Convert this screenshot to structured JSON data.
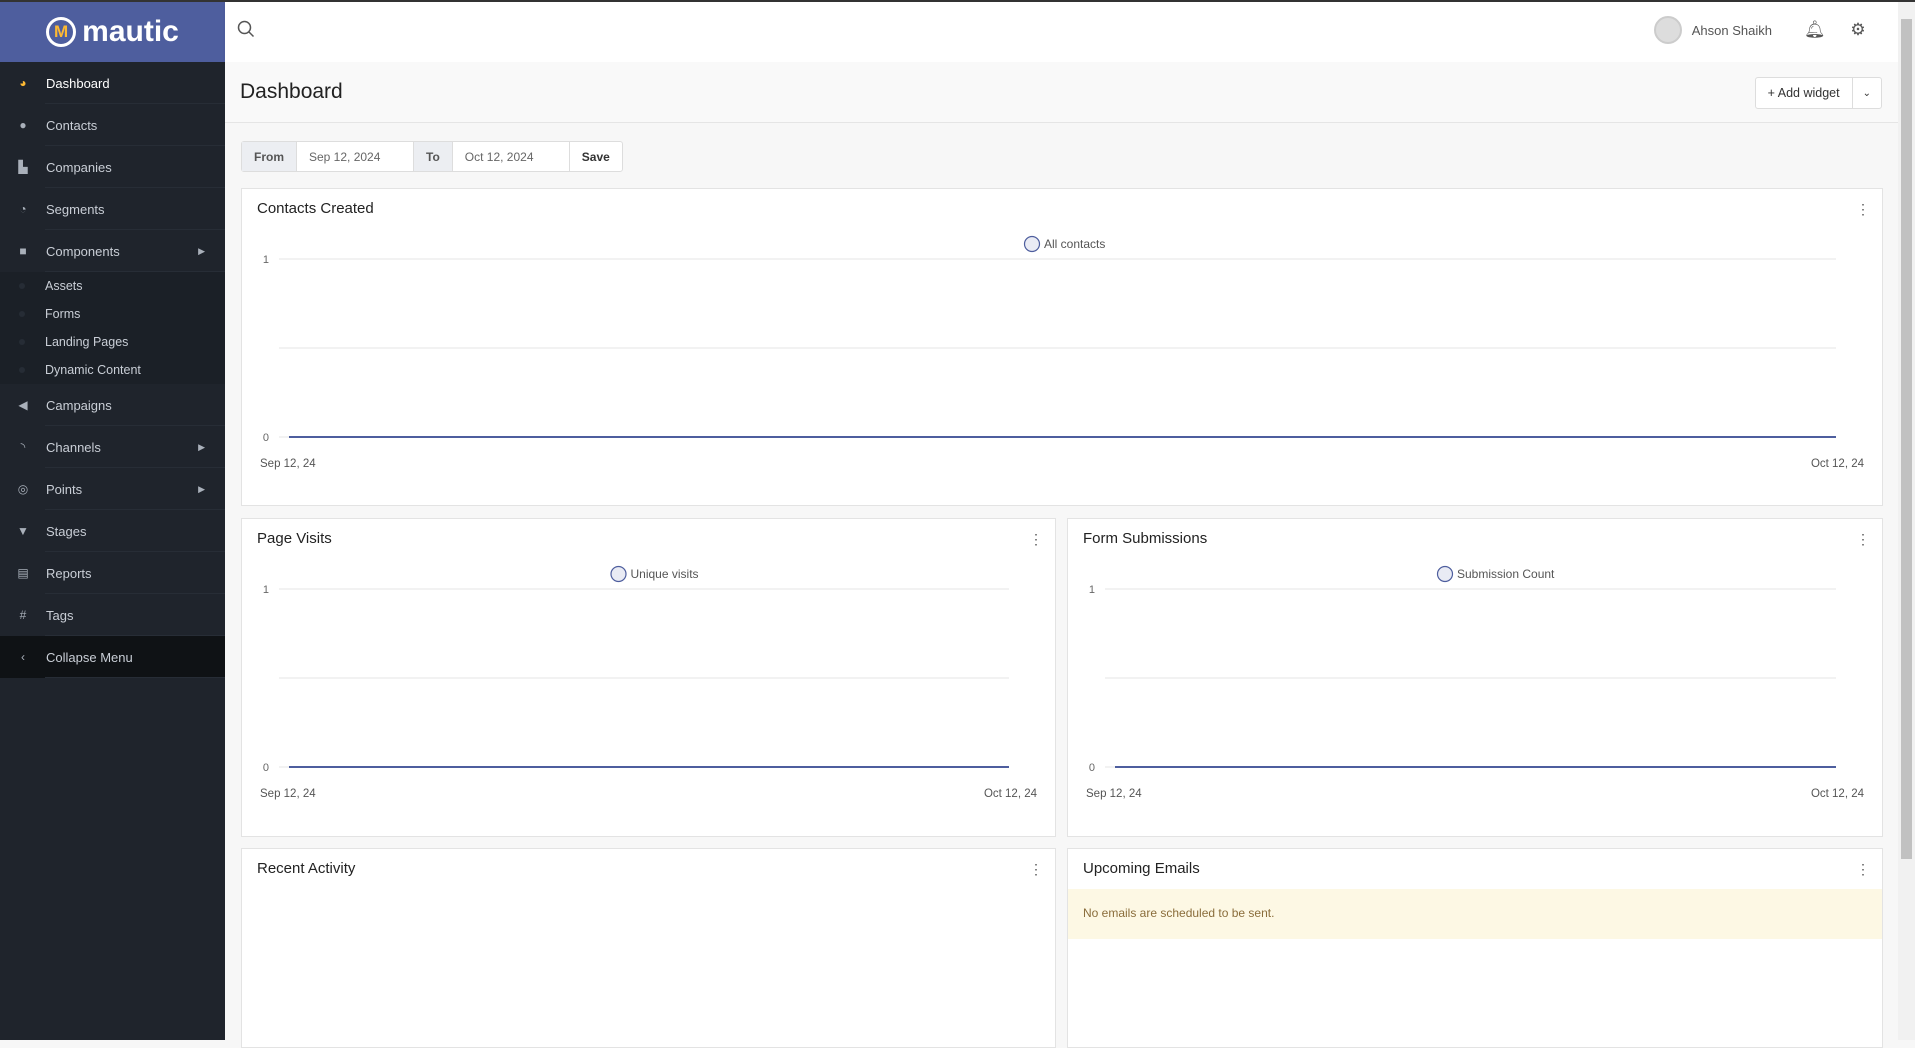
{
  "app": {
    "logo": "mautic"
  },
  "sidebar": {
    "items": [
      {
        "label": "Dashboard",
        "icon": "dashboard-icon",
        "glyph": "◕",
        "active": true
      },
      {
        "label": "Contacts",
        "icon": "user-icon",
        "glyph": "●"
      },
      {
        "label": "Companies",
        "icon": "building-icon",
        "glyph": "▙"
      },
      {
        "label": "Segments",
        "icon": "pie-chart-icon",
        "glyph": "◔"
      },
      {
        "label": "Components",
        "icon": "puzzle-icon",
        "glyph": "■",
        "arrow": true,
        "sub": [
          "Assets",
          "Forms",
          "Landing Pages",
          "Dynamic Content"
        ]
      },
      {
        "label": "Campaigns",
        "icon": "bullhorn-icon",
        "glyph": "◀"
      },
      {
        "label": "Channels",
        "icon": "rss-icon",
        "glyph": "◝",
        "arrow": true
      },
      {
        "label": "Points",
        "icon": "target-icon",
        "glyph": "◎",
        "arrow": true
      },
      {
        "label": "Stages",
        "icon": "filter-icon",
        "glyph": "▼"
      },
      {
        "label": "Reports",
        "icon": "report-icon",
        "glyph": "▤"
      },
      {
        "label": "Tags",
        "icon": "hash-icon",
        "glyph": "#"
      }
    ],
    "collapse": "Collapse Menu"
  },
  "header": {
    "user": "Ahson Shaikh"
  },
  "page": {
    "title": "Dashboard",
    "add_widget": "+ Add widget"
  },
  "dates": {
    "from_label": "From",
    "from": "Sep 12, 2024",
    "to_label": "To",
    "to": "Oct 12, 2024",
    "save": "Save"
  },
  "accent": "#4e5e9e",
  "chart_data": [
    {
      "title": "Contacts Created",
      "type": "line",
      "series": [
        {
          "name": "All contacts",
          "values": [
            0,
            0
          ]
        }
      ],
      "x": [
        "Sep 12, 24",
        "Oct 12, 24"
      ],
      "yticks": [
        "0",
        "1"
      ],
      "ylim": [
        0,
        1
      ],
      "grid": true,
      "legend": "top-center"
    },
    {
      "title": "Page Visits",
      "type": "line",
      "series": [
        {
          "name": "Unique visits",
          "values": [
            0,
            0
          ]
        }
      ],
      "x": [
        "Sep 12, 24",
        "Oct 12, 24"
      ],
      "yticks": [
        "0",
        "1"
      ],
      "ylim": [
        0,
        1
      ],
      "grid": true,
      "legend": "top-center"
    },
    {
      "title": "Form Submissions",
      "type": "line",
      "series": [
        {
          "name": "Submission Count",
          "values": [
            0,
            0
          ]
        }
      ],
      "x": [
        "Sep 12, 24",
        "Oct 12, 24"
      ],
      "yticks": [
        "0",
        "1"
      ],
      "ylim": [
        0,
        1
      ],
      "grid": true,
      "legend": "top-center"
    }
  ],
  "widgets": {
    "recent": "Recent Activity",
    "upcoming": "Upcoming Emails",
    "no_emails": "No emails are scheduled to be sent."
  }
}
